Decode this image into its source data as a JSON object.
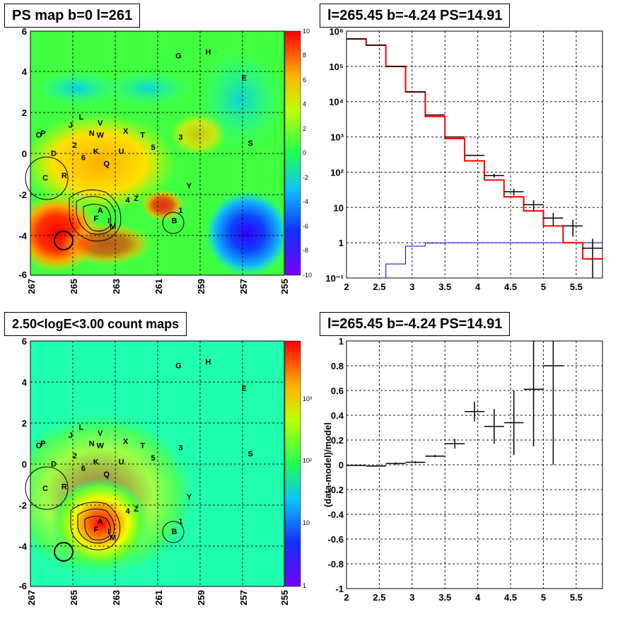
{
  "panels": {
    "ps_map": {
      "title": "PS map b=0 l=261"
    },
    "count_map": {
      "title": "2.50<logE<3.00 count maps"
    },
    "spectrum": {
      "title": "l=265.45 b=-4.24 PS=14.91"
    },
    "residual": {
      "title": "l=265.45 b=-4.24 PS=14.91"
    }
  },
  "colors": {
    "data": "#000000",
    "model": "#ff0000",
    "source": "#0000ff"
  },
  "chart_data": [
    {
      "type": "heatmap",
      "title": "PS map b=0 l=261",
      "xlim": [
        267,
        255
      ],
      "ylim": [
        -6,
        6
      ],
      "x_ticks": [
        "267",
        "265",
        "263",
        "261",
        "259",
        "257",
        "255"
      ],
      "y_ticks": [
        "6",
        "4",
        "2",
        "0",
        "-2",
        "-4",
        "-6"
      ],
      "colorbar": {
        "range": [
          -10,
          10
        ],
        "ticks": [
          "10",
          "8",
          "6",
          "4",
          "2",
          "0",
          "-2",
          "-4",
          "-6",
          "-8",
          "-10"
        ]
      },
      "sources": [
        {
          "label": "G",
          "l": 260.0,
          "b": 4.8
        },
        {
          "label": "H",
          "l": 258.6,
          "b": 5.0
        },
        {
          "label": "E",
          "l": 256.9,
          "b": 3.7
        },
        {
          "label": "L",
          "l": 264.6,
          "b": 1.8
        },
        {
          "label": "J",
          "l": 265.1,
          "b": 1.4
        },
        {
          "label": "V",
          "l": 263.7,
          "b": 1.5
        },
        {
          "label": "N",
          "l": 264.1,
          "b": 1.0
        },
        {
          "label": "W",
          "l": 263.7,
          "b": 0.9
        },
        {
          "label": "X",
          "l": 262.5,
          "b": 1.1
        },
        {
          "label": "T",
          "l": 261.7,
          "b": 0.9
        },
        {
          "label": "3",
          "l": 259.9,
          "b": 0.8
        },
        {
          "label": "O",
          "l": 266.6,
          "b": 0.9
        },
        {
          "label": "P",
          "l": 266.4,
          "b": 1.0
        },
        {
          "label": "2",
          "l": 264.9,
          "b": 0.4
        },
        {
          "label": "5",
          "l": 261.2,
          "b": 0.3
        },
        {
          "label": "S",
          "l": 256.6,
          "b": 0.5
        },
        {
          "label": "D",
          "l": 265.9,
          "b": 0.0
        },
        {
          "label": "6",
          "l": 264.5,
          "b": -0.2
        },
        {
          "label": "K",
          "l": 263.9,
          "b": 0.1
        },
        {
          "label": "U",
          "l": 262.7,
          "b": 0.1
        },
        {
          "label": "Q",
          "l": 263.4,
          "b": -0.5
        },
        {
          "label": "C",
          "l": 266.3,
          "b": -1.2
        },
        {
          "label": "R",
          "l": 265.4,
          "b": -1.1
        },
        {
          "label": "Y",
          "l": 259.5,
          "b": -1.6
        },
        {
          "label": "4",
          "l": 262.4,
          "b": -2.3
        },
        {
          "label": "Z",
          "l": 262.0,
          "b": -2.2
        },
        {
          "label": "A",
          "l": 263.7,
          "b": -2.8
        },
        {
          "label": "F",
          "l": 263.9,
          "b": -3.2
        },
        {
          "label": "I",
          "l": 263.3,
          "b": -3.3
        },
        {
          "label": "M",
          "l": 263.1,
          "b": -3.6
        },
        {
          "label": "1",
          "l": 259.9,
          "b": -2.8
        },
        {
          "label": "B",
          "l": 260.2,
          "b": -3.3
        }
      ]
    },
    {
      "type": "heatmap",
      "title": "2.50<logE<3.00 count maps",
      "xlim": [
        267,
        255
      ],
      "ylim": [
        -6,
        6
      ],
      "x_ticks": [
        "267",
        "265",
        "263",
        "261",
        "259",
        "257",
        "255"
      ],
      "y_ticks": [
        "6",
        "4",
        "2",
        "0",
        "-2",
        "-4",
        "-6"
      ],
      "colorbar": {
        "scale": "log",
        "ticks": [
          "10³",
          "10²",
          "10",
          "1"
        ]
      }
    },
    {
      "type": "line",
      "title": "l=265.45 b=-4.24 PS=14.91",
      "xlim": [
        2,
        5.9
      ],
      "ylim": [
        0.1,
        1000000
      ],
      "yscale": "log",
      "x_ticks": [
        "2",
        "2.5",
        "3",
        "3.5",
        "4",
        "4.5",
        "5",
        "5.5"
      ],
      "y_ticks": [
        "10⁻¹",
        "1",
        "10",
        "10²",
        "10³",
        "10⁴",
        "10⁵",
        "10⁶"
      ],
      "bin_edges": [
        2.0,
        2.3,
        2.6,
        2.9,
        3.2,
        3.5,
        3.8,
        4.1,
        4.4,
        4.7,
        5.0,
        5.3,
        5.6,
        5.9
      ],
      "series": [
        {
          "type": "errorbar",
          "values": [
            600000,
            400000,
            100000,
            19000,
            4200,
            1000,
            300,
            80,
            28,
            12,
            5,
            3,
            0.7
          ],
          "errors": [
            0,
            0,
            0,
            0,
            0,
            0,
            0,
            10,
            6,
            4,
            2,
            1.5,
            0.6
          ]
        },
        {
          "type": "step",
          "values": [
            600000,
            400000,
            100000,
            19000,
            3800,
            900,
            210,
            60,
            20,
            8,
            3,
            1,
            0.35
          ]
        },
        {
          "type": "step",
          "values": [
            0,
            0,
            0.25,
            0.8,
            0.98,
            1,
            1,
            1,
            1,
            1,
            1,
            1,
            1
          ]
        }
      ]
    },
    {
      "type": "scatter",
      "title": "l=265.45 b=-4.24 PS=14.91",
      "ylabel": "(data-model)/model",
      "xlim": [
        2,
        5.9
      ],
      "ylim": [
        -1,
        1
      ],
      "x_ticks": [
        "2",
        "2.5",
        "3",
        "3.5",
        "4",
        "4.5",
        "5",
        "5.5"
      ],
      "y_ticks": [
        "1",
        "0.8",
        "0.6",
        "0.4",
        "0.2",
        "0",
        "-0.2",
        "-0.4",
        "-0.6",
        "-0.8",
        "-1"
      ],
      "points": [
        {
          "x": 2.15,
          "y": -0.005,
          "err": 0.005
        },
        {
          "x": 2.45,
          "y": -0.01,
          "err": 0.005
        },
        {
          "x": 2.75,
          "y": 0.01,
          "err": 0.01
        },
        {
          "x": 3.05,
          "y": 0.02,
          "err": 0.01
        },
        {
          "x": 3.35,
          "y": 0.07,
          "err": 0.01
        },
        {
          "x": 3.65,
          "y": 0.17,
          "err": 0.04
        },
        {
          "x": 3.95,
          "y": 0.43,
          "err": 0.08
        },
        {
          "x": 4.25,
          "y": 0.31,
          "err": 0.14
        },
        {
          "x": 4.55,
          "y": 0.34,
          "err": 0.26
        },
        {
          "x": 4.85,
          "y": 0.61,
          "err": 0.46
        },
        {
          "x": 5.15,
          "y": 0.8,
          "err": 0.8
        }
      ]
    }
  ]
}
